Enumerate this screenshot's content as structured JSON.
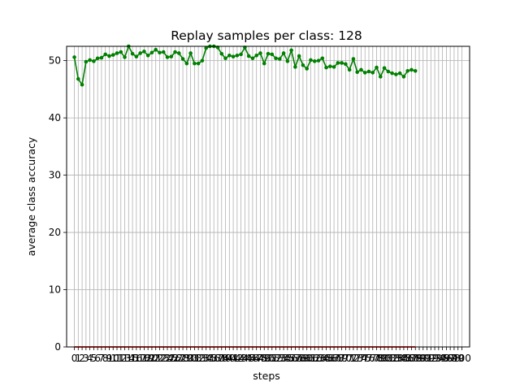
{
  "chart_data": {
    "type": "line",
    "title": "Replay samples per class: 128",
    "xlabel": "steps",
    "ylabel": "average class accuracy",
    "xlim": [
      -2,
      102
    ],
    "ylim": [
      0,
      52.5
    ],
    "y_ticks": [
      0,
      10,
      20,
      30,
      40,
      50
    ],
    "x_ticks": [
      0,
      1,
      2,
      3,
      4,
      5,
      6,
      7,
      8,
      9,
      10,
      11,
      12,
      13,
      14,
      15,
      16,
      17,
      18,
      19,
      20,
      21,
      22,
      23,
      24,
      25,
      26,
      27,
      28,
      29,
      30,
      31,
      32,
      33,
      34,
      35,
      36,
      37,
      38,
      39,
      40,
      41,
      42,
      43,
      44,
      45,
      46,
      47,
      48,
      49,
      50,
      51,
      52,
      53,
      54,
      55,
      56,
      57,
      58,
      59,
      60,
      61,
      62,
      63,
      64,
      65,
      66,
      67,
      68,
      69,
      70,
      71,
      72,
      73,
      74,
      75,
      76,
      77,
      78,
      79,
      80,
      81,
      82,
      83,
      84,
      85,
      86,
      87,
      88,
      89,
      90,
      91,
      92,
      93,
      94,
      95,
      96,
      97,
      98,
      99,
      100
    ],
    "grid": true,
    "series": [
      {
        "color": "#008000",
        "marker": "circle",
        "x": [
          0,
          1,
          2,
          3,
          4,
          5,
          6,
          7,
          8,
          9,
          10,
          11,
          12,
          13,
          14,
          15,
          16,
          17,
          18,
          19,
          20,
          21,
          22,
          23,
          24,
          25,
          26,
          27,
          28,
          29,
          30,
          31,
          32,
          33,
          34,
          35,
          36,
          37,
          38,
          39,
          40,
          41,
          42,
          43,
          44,
          45,
          46,
          47,
          48,
          49,
          50,
          51,
          52,
          53,
          54,
          55,
          56,
          57,
          58,
          59,
          60,
          61,
          62,
          63,
          64,
          65,
          66,
          67,
          68,
          69,
          70,
          71,
          72,
          73,
          74,
          75,
          76,
          77,
          78,
          79,
          80,
          81,
          82,
          83,
          84,
          85,
          86,
          87,
          88
        ],
        "values": [
          50.6,
          46.8,
          45.8,
          49.8,
          50.1,
          49.9,
          50.4,
          50.5,
          51.1,
          50.8,
          51.0,
          51.3,
          51.5,
          50.6,
          52.5,
          51.2,
          50.7,
          51.3,
          51.6,
          50.9,
          51.4,
          51.9,
          51.4,
          51.5,
          50.6,
          50.7,
          51.5,
          51.3,
          50.3,
          49.5,
          51.3,
          49.5,
          49.5,
          50.0,
          52.2,
          52.5,
          52.5,
          52.3,
          51.2,
          50.4,
          50.9,
          50.7,
          50.9,
          51.1,
          52.3,
          50.8,
          50.4,
          50.9,
          51.3,
          49.5,
          51.2,
          51.1,
          50.4,
          50.3,
          51.3,
          49.9,
          51.8,
          48.9,
          50.8,
          49.2,
          48.6,
          50.1,
          49.9,
          50.0,
          50.4,
          48.8,
          49.0,
          48.9,
          49.6,
          49.6,
          49.4,
          48.4,
          50.3,
          48.0,
          48.4,
          47.9,
          48.1,
          47.9,
          48.8,
          47.2,
          48.7,
          48.1,
          47.8,
          47.6,
          47.8,
          47.2,
          48.2,
          48.4,
          48.2
        ]
      },
      {
        "color": "#ff0000",
        "marker": "none",
        "x": [
          0,
          88
        ],
        "values": [
          0,
          0
        ]
      }
    ]
  }
}
